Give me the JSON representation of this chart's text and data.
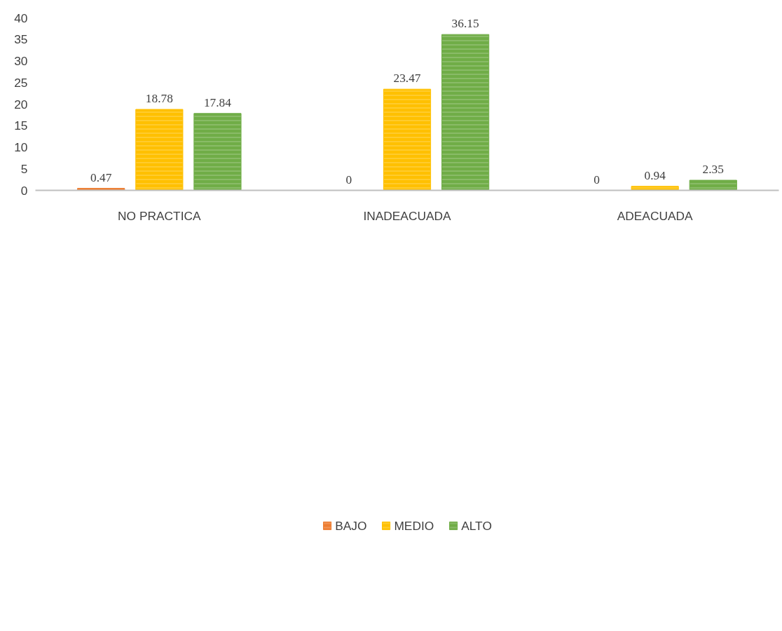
{
  "chart_data": {
    "type": "bar",
    "categories": [
      "NO PRACTICA",
      "INADEACUADA",
      "ADEACUADA"
    ],
    "series": [
      {
        "name": "BAJO",
        "color": "#ed7d31",
        "values": [
          0.47,
          0,
          0
        ]
      },
      {
        "name": "MEDIO",
        "color": "#ffc000",
        "values": [
          18.78,
          23.47,
          0.94
        ]
      },
      {
        "name": "ALTO",
        "color": "#70ad47",
        "values": [
          17.84,
          36.15,
          2.35
        ]
      }
    ],
    "ylim": [
      0,
      40
    ],
    "yticks": [
      0,
      5,
      10,
      15,
      20,
      25,
      30,
      35,
      40
    ],
    "data_labels": true,
    "grid": false,
    "legend": "bottom"
  }
}
